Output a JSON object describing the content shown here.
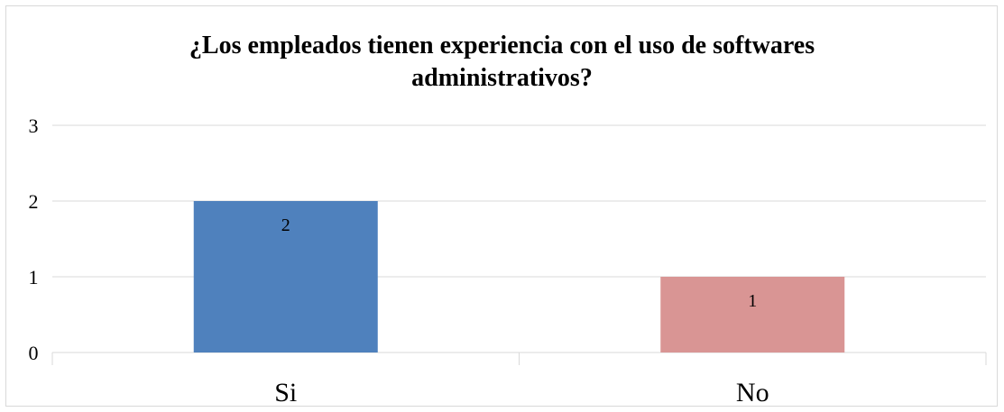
{
  "chart_data": {
    "type": "bar",
    "title_lines": [
      "¿Los empleados tienen experiencia con el uso de softwares",
      "administrativos?"
    ],
    "categories": [
      "Si",
      "No"
    ],
    "values": [
      2,
      1
    ],
    "data_labels": [
      "2",
      "1"
    ],
    "bar_colors": [
      "#4F81BD",
      "#D99594"
    ],
    "ylim": [
      0,
      3
    ],
    "y_ticks": [
      "0",
      "1",
      "2",
      "3"
    ],
    "grid": true,
    "legend": "none",
    "xlabel": "",
    "ylabel": ""
  }
}
